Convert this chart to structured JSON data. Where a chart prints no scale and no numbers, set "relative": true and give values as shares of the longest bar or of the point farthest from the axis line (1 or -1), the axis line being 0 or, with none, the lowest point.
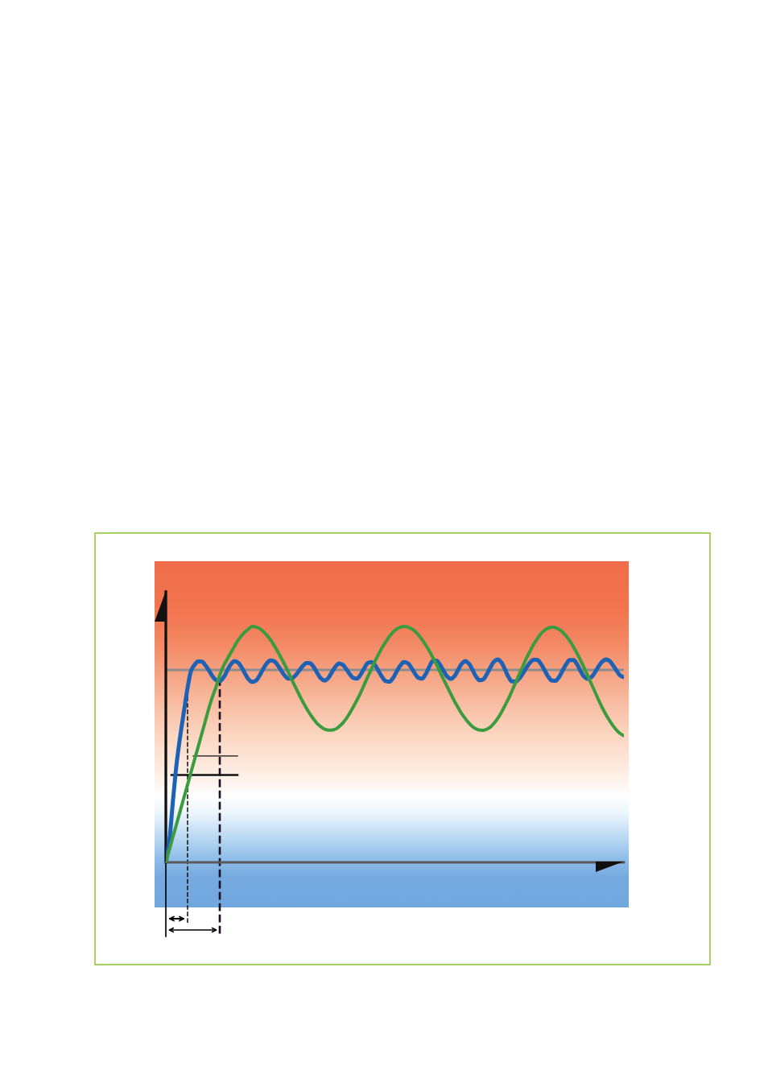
{
  "chart_data": {
    "type": "line",
    "relative": true,
    "categories": [
      null,
      null,
      null,
      null,
      null,
      null,
      null,
      null,
      null,
      null,
      null,
      null,
      null,
      null,
      null,
      null,
      null,
      null,
      null,
      null,
      null,
      null,
      null,
      null,
      null,
      null,
      null,
      null,
      null,
      null,
      null,
      null,
      null,
      null,
      null,
      null,
      null,
      null,
      null,
      null,
      null,
      null,
      null,
      null,
      null,
      null,
      null,
      null,
      null,
      null,
      null,
      null,
      null,
      null,
      null,
      null,
      null,
      null,
      null,
      null,
      null,
      null,
      null,
      null,
      null,
      null,
      null,
      null,
      null,
      null,
      null,
      null,
      null,
      null,
      null,
      null,
      null,
      null,
      null,
      null,
      null,
      null,
      null,
      null,
      null,
      null,
      null,
      null,
      null,
      null,
      null,
      null,
      null,
      null,
      null,
      null,
      null,
      null,
      null,
      null,
      null,
      null,
      null,
      null,
      null,
      null,
      null,
      null,
      null,
      null,
      null,
      null,
      null,
      null,
      null,
      null,
      null,
      null,
      null,
      null,
      null,
      null,
      null,
      null,
      null,
      null,
      null,
      null
    ],
    "series": [
      {
        "color": "#1e62b6",
        "values": [
          0.0,
          0.096,
          0.266,
          0.42,
          0.536,
          0.638,
          0.737,
          0.812,
          0.838,
          0.852,
          0.851,
          0.835,
          0.812,
          0.788,
          0.772,
          0.769,
          0.784,
          0.812,
          0.839,
          0.853,
          0.847,
          0.827,
          0.799,
          0.775,
          0.765,
          0.771,
          0.792,
          0.82,
          0.844,
          0.856,
          0.853,
          0.836,
          0.813,
          0.791,
          0.779,
          0.781,
          0.794,
          0.813,
          0.833,
          0.845,
          0.844,
          0.828,
          0.802,
          0.78,
          0.771,
          0.781,
          0.805,
          0.829,
          0.843,
          0.838,
          0.82,
          0.798,
          0.782,
          0.779,
          0.796,
          0.823,
          0.845,
          0.849,
          0.836,
          0.811,
          0.785,
          0.768,
          0.766,
          0.782,
          0.809,
          0.834,
          0.849,
          0.845,
          0.827,
          0.802,
          0.783,
          0.779,
          0.797,
          0.828,
          0.853,
          0.855,
          0.838,
          0.812,
          0.788,
          0.778,
          0.789,
          0.815,
          0.841,
          0.853,
          0.843,
          0.817,
          0.788,
          0.772,
          0.776,
          0.798,
          0.827,
          0.851,
          0.86,
          0.848,
          0.819,
          0.786,
          0.767,
          0.767,
          0.78,
          0.801,
          0.826,
          0.847,
          0.859,
          0.858,
          0.841,
          0.815,
          0.788,
          0.771,
          0.77,
          0.785,
          0.813,
          0.84,
          0.858,
          0.858,
          0.84,
          0.811,
          0.787,
          0.778,
          0.786,
          0.806,
          0.831,
          0.851,
          0.86,
          0.854,
          0.835,
          0.812,
          0.792,
          0.785
        ]
      },
      {
        "color": "#3a9b3f",
        "values": [
          0.0,
          0.055,
          0.11,
          0.164,
          0.219,
          0.274,
          0.328,
          0.383,
          0.438,
          0.492,
          0.547,
          0.602,
          0.657,
          0.705,
          0.747,
          0.795,
          0.833,
          0.861,
          0.888,
          0.915,
          0.941,
          0.961,
          0.978,
          0.99,
          1.0,
          0.998,
          0.991,
          0.979,
          0.963,
          0.944,
          0.92,
          0.894,
          0.866,
          0.837,
          0.805,
          0.772,
          0.741,
          0.71,
          0.68,
          0.653,
          0.628,
          0.607,
          0.588,
          0.575,
          0.565,
          0.561,
          0.561,
          0.565,
          0.575,
          0.59,
          0.609,
          0.633,
          0.66,
          0.688,
          0.719,
          0.753,
          0.787,
          0.819,
          0.853,
          0.883,
          0.911,
          0.935,
          0.958,
          0.976,
          0.989,
          0.997,
          1.0,
          0.998,
          0.991,
          0.981,
          0.965,
          0.945,
          0.923,
          0.898,
          0.869,
          0.841,
          0.808,
          0.776,
          0.745,
          0.714,
          0.684,
          0.657,
          0.631,
          0.61,
          0.591,
          0.576,
          0.566,
          0.561,
          0.56,
          0.565,
          0.574,
          0.59,
          0.61,
          0.635,
          0.664,
          0.694,
          0.728,
          0.763,
          0.798,
          0.832,
          0.866,
          0.896,
          0.925,
          0.948,
          0.969,
          0.984,
          0.993,
          0.997,
          0.995,
          0.988,
          0.976,
          0.959,
          0.939,
          0.914,
          0.886,
          0.856,
          0.824,
          0.79,
          0.756,
          0.722,
          0.688,
          0.656,
          0.627,
          0.602,
          0.579,
          0.56,
          0.546,
          0.537
        ]
      }
    ],
    "ref_lines": [
      {
        "axis": "y",
        "value": 0.816,
        "color": "#8c8c8c",
        "line_style": "solid"
      },
      {
        "axis": "y",
        "value": 0.451,
        "color": "#111111",
        "line_style": "solid"
      },
      {
        "axis": "y",
        "value": 0.37,
        "color": "#111111",
        "line_style": "solid"
      }
    ],
    "marker": "none",
    "line_style": "solid"
  }
}
